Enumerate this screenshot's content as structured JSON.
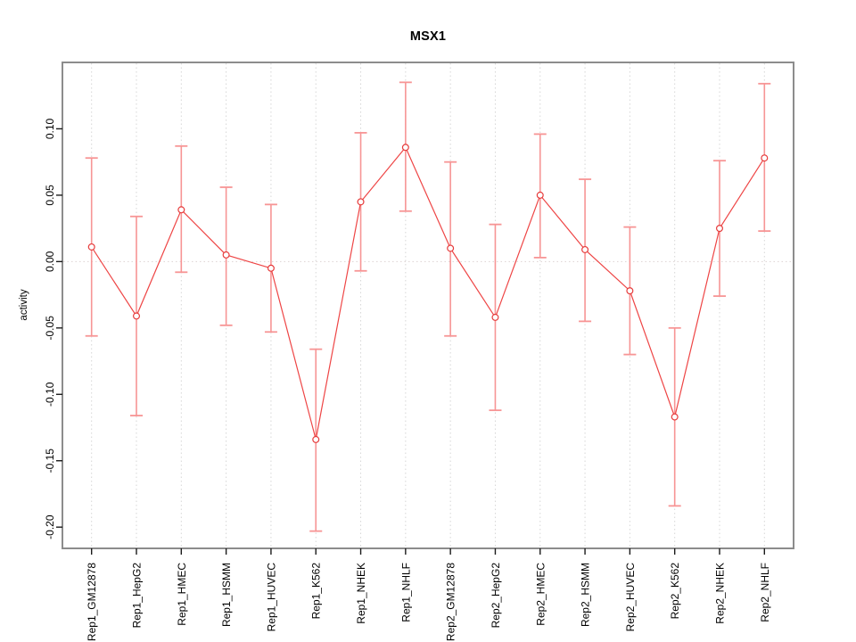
{
  "figure": {
    "title": "MSX1"
  },
  "colors": {
    "line": "#ee4545",
    "point_stroke": "#e63b3b",
    "point_fill": "#ffffff",
    "error_bar": "#f79595",
    "grid": "#d6d6d6",
    "zero_line": "#ddd2d2",
    "border": "#8c8c8c",
    "tick": "#1a1a1a",
    "background": "#ffffff"
  },
  "chart_data": {
    "type": "line",
    "title": "MSX1",
    "xlabel": "",
    "ylabel": "activity",
    "categories": [
      "Rep1_GM12878",
      "Rep1_HepG2",
      "Rep1_HMEC",
      "Rep1_HSMM",
      "Rep1_HUVEC",
      "Rep1_K562",
      "Rep1_NHEK",
      "Rep1_NHLF",
      "Rep2_GM12878",
      "Rep2_HepG2",
      "Rep2_HMEC",
      "Rep2_HSMM",
      "Rep2_HUVEC",
      "Rep2_K562",
      "Rep2_NHEK",
      "Rep2_NHLF"
    ],
    "series": [
      {
        "name": "MSX1 activity",
        "values": [
          0.011,
          -0.041,
          0.039,
          0.005,
          -0.005,
          -0.134,
          0.045,
          0.086,
          0.01,
          -0.042,
          0.05,
          0.009,
          -0.022,
          -0.117,
          0.025,
          0.078
        ],
        "error_high": [
          0.078,
          0.034,
          0.087,
          0.056,
          0.043,
          -0.066,
          0.097,
          0.135,
          0.075,
          0.028,
          0.096,
          0.062,
          0.026,
          -0.05,
          0.076,
          0.134
        ],
        "error_low": [
          -0.056,
          -0.116,
          -0.008,
          -0.048,
          -0.053,
          -0.203,
          -0.007,
          0.038,
          -0.056,
          -0.112,
          0.003,
          -0.045,
          -0.07,
          -0.184,
          -0.026,
          0.023
        ]
      }
    ],
    "ytick_labels": [
      "0.10",
      "0.05",
      "0.00",
      "-0.05",
      "-0.10",
      "-0.15",
      "-0.20"
    ],
    "ylim": [
      -0.216,
      0.15
    ],
    "grid": {
      "vertical_dotted_per_category": true,
      "horizontal_dotted_zero_line": true
    },
    "legend": "none",
    "marker": "open-circle",
    "error_bars": true
  }
}
